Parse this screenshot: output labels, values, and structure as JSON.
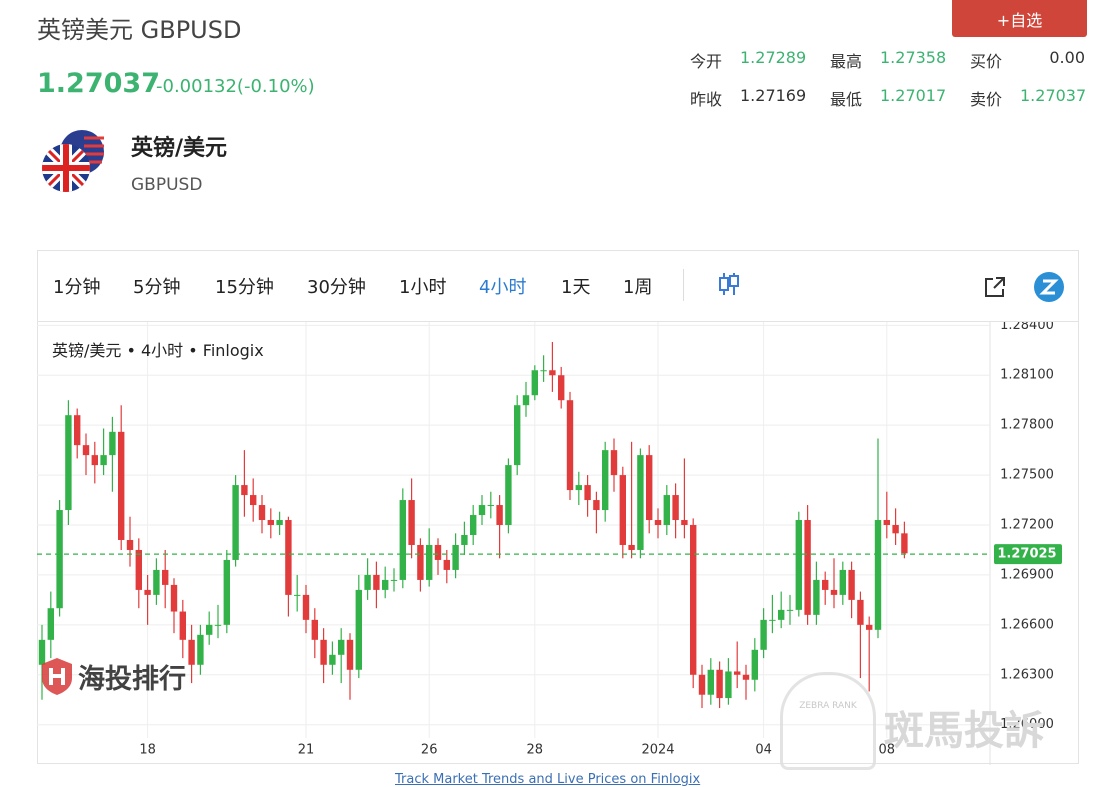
{
  "header": {
    "title": "英镑美元 GBPUSD",
    "price": "1.27037",
    "change": "-0.00132(-0.10%)",
    "watch_button": "+自选",
    "stats": [
      {
        "label": "今开",
        "value": "1.27289",
        "color": "#3cb371"
      },
      {
        "label": "最高",
        "value": "1.27358",
        "color": "#3cb371"
      },
      {
        "label": "买价",
        "value": "0.00",
        "color": "#333333"
      },
      {
        "label": "昨收",
        "value": "1.27169",
        "color": "#333333"
      },
      {
        "label": "最低",
        "value": "1.27017",
        "color": "#3cb371"
      },
      {
        "label": "卖价",
        "value": "1.27037",
        "color": "#3cb371"
      }
    ],
    "pair_name": "英镑/美元",
    "symbol": "GBPUSD"
  },
  "toolbar": {
    "intervals": [
      "1分钟",
      "5分钟",
      "15分钟",
      "30分钟",
      "1小时",
      "4小时",
      "1天",
      "1周"
    ],
    "active": 5
  },
  "chart_data": {
    "type": "candlestick",
    "legend": "英镑/美元 • 4小时 • Finlogix",
    "up_color": "#33b249",
    "down_color": "#e23b3b",
    "categories": [
      null,
      null,
      null,
      null,
      null,
      null,
      null,
      null,
      null,
      null,
      null,
      null,
      "18",
      null,
      null,
      null,
      null,
      null,
      null,
      null,
      null,
      null,
      null,
      null,
      null,
      null,
      null,
      null,
      null,
      null,
      "21",
      null,
      null,
      null,
      null,
      null,
      null,
      null,
      null,
      null,
      null,
      null,
      null,
      null,
      "26",
      null,
      null,
      null,
      null,
      null,
      null,
      null,
      null,
      null,
      null,
      null,
      "28",
      null,
      null,
      null,
      null,
      null,
      null,
      null,
      null,
      null,
      null,
      null,
      null,
      null,
      "2024",
      null,
      null,
      null,
      null,
      null,
      null,
      null,
      null,
      null,
      null,
      null,
      "04",
      null,
      null,
      null,
      null,
      null,
      null,
      null,
      null,
      null,
      null,
      null,
      null,
      null,
      "08",
      null,
      null
    ],
    "open": [
      1.2636,
      1.2651,
      1.267,
      1.2729,
      1.2786,
      1.2768,
      1.2762,
      1.2756,
      1.2762,
      1.2776,
      1.2711,
      1.2705,
      1.2681,
      1.2678,
      1.2693,
      1.2684,
      1.2668,
      1.2651,
      1.2636,
      1.2654,
      1.266,
      1.266,
      1.2699,
      1.2744,
      1.2738,
      1.2732,
      1.2723,
      1.272,
      1.2723,
      1.2678,
      1.2678,
      1.2663,
      1.2651,
      1.2636,
      1.2642,
      1.2651,
      1.2633,
      1.2681,
      1.269,
      1.2681,
      1.2687,
      1.2687,
      1.2735,
      1.2708,
      1.2687,
      1.2708,
      1.2699,
      1.2693,
      1.2708,
      1.2714,
      1.2726,
      1.2732,
      1.2732,
      1.272,
      1.2756,
      1.2792,
      1.2798,
      1.2813,
      1.2813,
      1.281,
      1.2795,
      1.2741,
      1.2744,
      1.2735,
      1.2729,
      1.2765,
      1.275,
      1.2708,
      1.2705,
      1.2762,
      1.2723,
      1.272,
      1.2738,
      1.2723,
      1.272,
      1.263,
      1.2618,
      1.2633,
      1.2616,
      1.2632,
      1.263,
      1.2627,
      1.2645,
      1.2663,
      1.2663,
      1.2669,
      1.2669,
      1.2723,
      1.2666,
      1.2687,
      1.2681,
      1.2678,
      1.2693,
      1.2675,
      1.266,
      1.2657,
      1.2723,
      1.272,
      1.2715
    ],
    "high": [
      1.266,
      1.268,
      1.2735,
      1.2795,
      1.279,
      1.2775,
      1.277,
      1.2778,
      1.2785,
      1.2792,
      1.2725,
      1.2712,
      1.269,
      1.27,
      1.2705,
      1.2688,
      1.2675,
      1.266,
      1.266,
      1.2668,
      1.2672,
      1.2705,
      1.275,
      1.2765,
      1.2748,
      1.2738,
      1.273,
      1.2728,
      1.2725,
      1.269,
      1.2684,
      1.267,
      1.2658,
      1.265,
      1.2658,
      1.2655,
      1.269,
      1.27,
      1.2698,
      1.2695,
      1.2694,
      1.2742,
      1.2748,
      1.2712,
      1.2718,
      1.2712,
      1.2705,
      1.2715,
      1.2722,
      1.2732,
      1.2738,
      1.274,
      1.2738,
      1.276,
      1.2798,
      1.2806,
      1.2816,
      1.2822,
      1.283,
      1.2815,
      1.28,
      1.2752,
      1.275,
      1.274,
      1.277,
      1.2772,
      1.2755,
      1.277,
      1.2766,
      1.2768,
      1.273,
      1.2744,
      1.2745,
      1.276,
      1.2724,
      1.2636,
      1.264,
      1.2638,
      1.264,
      1.265,
      1.2636,
      1.2652,
      1.267,
      1.2678,
      1.268,
      1.2678,
      1.2728,
      1.2732,
      1.2698,
      1.2692,
      1.27,
      1.2698,
      1.2698,
      1.268,
      1.2665,
      1.2772,
      1.274,
      1.273,
      1.2722
    ],
    "low": [
      1.2615,
      1.264,
      1.2665,
      1.272,
      1.276,
      1.275,
      1.2745,
      1.275,
      1.274,
      1.2705,
      1.2695,
      1.267,
      1.266,
      1.2672,
      1.267,
      1.2655,
      1.264,
      1.2625,
      1.263,
      1.2648,
      1.2652,
      1.2655,
      1.2695,
      1.2725,
      1.2722,
      1.2715,
      1.2712,
      1.2714,
      1.2665,
      1.2668,
      1.2655,
      1.264,
      1.2625,
      1.263,
      1.2625,
      1.2615,
      1.2628,
      1.2675,
      1.267,
      1.2676,
      1.268,
      1.2682,
      1.27,
      1.268,
      1.2683,
      1.269,
      1.2685,
      1.2688,
      1.2702,
      1.2708,
      1.272,
      1.2724,
      1.27,
      1.2715,
      1.275,
      1.2785,
      1.2795,
      1.2806,
      1.28,
      1.279,
      1.2735,
      1.2732,
      1.2725,
      1.2715,
      1.2722,
      1.274,
      1.27,
      1.27,
      1.27,
      1.2715,
      1.2712,
      1.2714,
      1.2712,
      1.2712,
      1.2622,
      1.261,
      1.2612,
      1.261,
      1.2612,
      1.2622,
      1.2615,
      1.262,
      1.264,
      1.2655,
      1.2658,
      1.266,
      1.2665,
      1.266,
      1.266,
      1.2672,
      1.267,
      1.2672,
      1.2664,
      1.2628,
      1.262,
      1.2652,
      1.2712,
      1.2708,
      1.27
    ],
    "close": [
      1.2651,
      1.267,
      1.2729,
      1.2786,
      1.2768,
      1.2762,
      1.2756,
      1.2762,
      1.2776,
      1.2711,
      1.2705,
      1.2681,
      1.2678,
      1.2693,
      1.2684,
      1.2668,
      1.2651,
      1.2636,
      1.2654,
      1.266,
      1.266,
      1.2699,
      1.2744,
      1.2738,
      1.2732,
      1.2723,
      1.272,
      1.2723,
      1.2678,
      1.2678,
      1.2663,
      1.2651,
      1.2636,
      1.2642,
      1.2651,
      1.2633,
      1.2681,
      1.269,
      1.2681,
      1.2687,
      1.2687,
      1.2735,
      1.2708,
      1.2687,
      1.2708,
      1.2699,
      1.2693,
      1.2708,
      1.2714,
      1.2726,
      1.2732,
      1.2732,
      1.272,
      1.2756,
      1.2792,
      1.2798,
      1.2813,
      1.2813,
      1.281,
      1.2795,
      1.2741,
      1.2744,
      1.2735,
      1.2729,
      1.2765,
      1.275,
      1.2708,
      1.2705,
      1.2762,
      1.2723,
      1.272,
      1.2738,
      1.2723,
      1.272,
      1.263,
      1.2618,
      1.2633,
      1.2616,
      1.2632,
      1.263,
      1.2627,
      1.2645,
      1.2663,
      1.2663,
      1.2669,
      1.2669,
      1.2723,
      1.2666,
      1.2687,
      1.2681,
      1.2678,
      1.2693,
      1.2675,
      1.266,
      1.2657,
      1.2723,
      1.272,
      1.2715,
      1.2703
    ],
    "ylim": [
      1.2592,
      1.2842
    ],
    "yticks": [
      {
        "value": 1.26,
        "label": "1.26000"
      },
      {
        "value": 1.263,
        "label": "1.26300"
      },
      {
        "value": 1.266,
        "label": "1.26600"
      },
      {
        "value": 1.269,
        "label": "1.26900"
      },
      {
        "value": 1.272,
        "label": "1.27200"
      },
      {
        "value": 1.275,
        "label": "1.27500"
      },
      {
        "value": 1.278,
        "label": "1.27800"
      },
      {
        "value": 1.281,
        "label": "1.28100"
      },
      {
        "value": 1.284,
        "label": "1.28400"
      }
    ],
    "grid": true,
    "last_price": {
      "value": 1.27025,
      "label": "1.27025"
    },
    "last_price_color": "#33b249"
  },
  "watermarks": {
    "left": "海投排行",
    "badge": "ZEBRA RANK",
    "right": "斑馬投訴"
  },
  "footer": "Track Market Trends and Live Prices on Finlogix"
}
